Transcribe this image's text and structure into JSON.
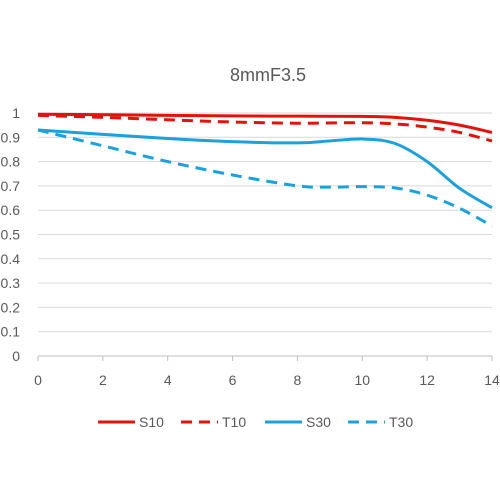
{
  "chart_data": {
    "type": "line",
    "title": "8mmF3.5",
    "xlabel": "",
    "ylabel": "",
    "xlim": [
      0,
      14
    ],
    "ylim": [
      0,
      1
    ],
    "x_ticks": [
      "0",
      "2",
      "4",
      "6",
      "8",
      "10",
      "12",
      "14"
    ],
    "y_ticks": [
      "0",
      "0.1",
      "0.2",
      "0.3",
      "0.4",
      "0.5",
      "0.6",
      "0.7",
      "0.8",
      "0.9",
      "1"
    ],
    "grid": "horizontal",
    "legend": "bottom",
    "series": [
      {
        "name": "S10",
        "color": "#e3120b",
        "dash": "solid",
        "x": [
          0,
          2,
          4,
          6,
          8,
          10,
          11,
          12,
          13,
          14
        ],
        "y": [
          0.995,
          0.993,
          0.99,
          0.988,
          0.987,
          0.986,
          0.982,
          0.97,
          0.95,
          0.92
        ]
      },
      {
        "name": "T10",
        "color": "#e3120b",
        "dash": "dashed",
        "x": [
          0,
          2,
          4,
          6,
          8,
          10,
          11,
          12,
          13,
          14
        ],
        "y": [
          0.99,
          0.982,
          0.972,
          0.963,
          0.958,
          0.96,
          0.955,
          0.942,
          0.92,
          0.885
        ]
      },
      {
        "name": "S30",
        "color": "#1ba1dc",
        "dash": "solid",
        "x": [
          0,
          2,
          4,
          6,
          8,
          9,
          10,
          11,
          12,
          13,
          14
        ],
        "y": [
          0.93,
          0.912,
          0.895,
          0.882,
          0.877,
          0.885,
          0.893,
          0.875,
          0.8,
          0.69,
          0.61
        ]
      },
      {
        "name": "T30",
        "color": "#1ba1dc",
        "dash": "dashed",
        "x": [
          0,
          2,
          4,
          6,
          8,
          9,
          10,
          11,
          12,
          13,
          14
        ],
        "y": [
          0.93,
          0.865,
          0.8,
          0.745,
          0.7,
          0.695,
          0.697,
          0.692,
          0.662,
          0.608,
          0.535
        ]
      }
    ]
  }
}
